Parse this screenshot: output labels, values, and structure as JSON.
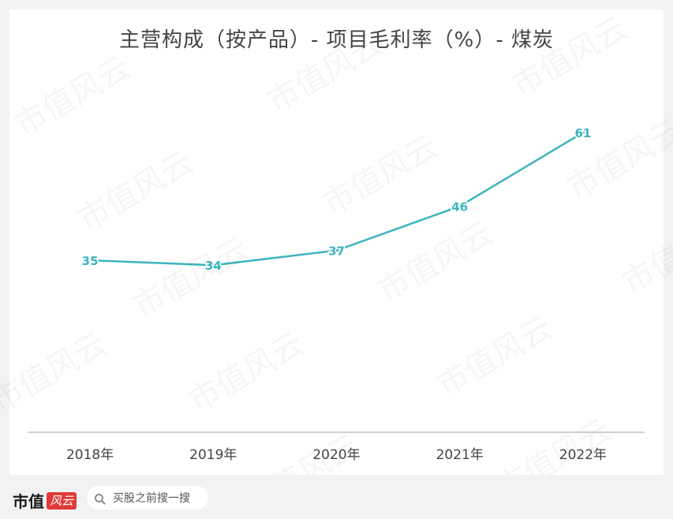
{
  "title": "主营构成（按产品）- 项目毛利率（%）- 煤炭",
  "watermark_text": "市值风云",
  "footer": {
    "brand_main": "市值",
    "brand_logo": "风云",
    "search_placeholder": "买股之前搜一搜"
  },
  "colors": {
    "line": "#3cb4bd",
    "axis": "#bfbfbf",
    "label": "#3cb4bd",
    "tick": "#444444"
  },
  "chart_data": {
    "type": "line",
    "title": "主营构成（按产品）- 项目毛利率（%）- 煤炭",
    "categories": [
      "2018年",
      "2019年",
      "2020年",
      "2021年",
      "2022年"
    ],
    "values": [
      35,
      34,
      37,
      46,
      61
    ],
    "data_labels": [
      "35",
      "34",
      "37",
      "46",
      "61"
    ],
    "ylim": [
      0,
      70
    ],
    "grid": false,
    "legend": "none"
  }
}
